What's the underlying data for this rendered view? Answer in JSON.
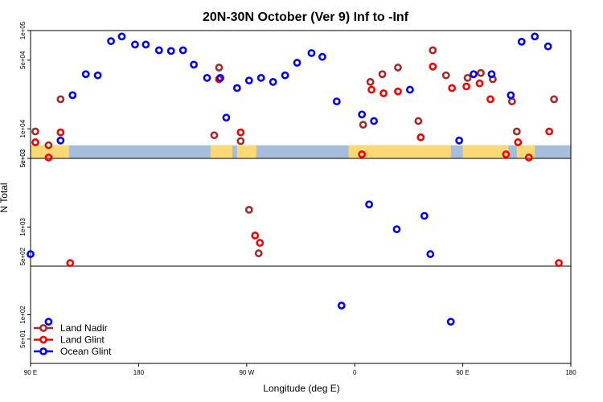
{
  "chart_data": {
    "type": "scatter",
    "title": "20N-30N October (Ver 9)   Inf to -Inf",
    "xlabel": "Longitude (deg E)",
    "ylabel": "N Total",
    "x_ticks": [
      {
        "value": 90,
        "label": "90 E"
      },
      {
        "value": 180,
        "label": "180"
      },
      {
        "value": 270,
        "label": "90 W"
      },
      {
        "value": 360,
        "label": "0"
      },
      {
        "value": 450,
        "label": "90 E"
      },
      {
        "value": 540,
        "label": "180"
      }
    ],
    "xlim": [
      90,
      540
    ],
    "panels": [
      {
        "ylim": [
          5000,
          100000
        ],
        "log": true,
        "ticks": [
          {
            "value": 5000,
            "label": "5e+03"
          },
          {
            "value": 10000,
            "label": "1e+04"
          },
          {
            "value": 50000,
            "label": "5e+04"
          },
          {
            "value": 100000,
            "label": "1e+05"
          }
        ]
      },
      {
        "ylim": [
          400,
          5000
        ],
        "log": true,
        "ticks": [
          {
            "value": 500,
            "label": "5e+02"
          },
          {
            "value": 1000,
            "label": "1e+03"
          },
          {
            "value": 5000,
            "label": "5e+03"
          }
        ]
      },
      {
        "ylim": [
          25,
          400
        ],
        "log": true,
        "ticks": [
          {
            "value": 50,
            "label": "5e+01"
          },
          {
            "value": 100,
            "label": "1e+02"
          }
        ]
      }
    ],
    "map_strip": {
      "y_bottom": 5000,
      "y_top": 6800,
      "ocean_color": "#a6bddb",
      "land_color": "#fdd976"
    },
    "legend": {
      "position": "bottom-left"
    },
    "series": [
      {
        "name": "Land Nadir",
        "color": "#a52a2a",
        "points": [
          [
            94,
            9400
          ],
          [
            105,
            6800
          ],
          [
            115,
            20000
          ],
          [
            243,
            8600
          ],
          [
            247,
            42000
          ],
          [
            265,
            7500
          ],
          [
            272,
            1500
          ],
          [
            280,
            540
          ],
          [
            367,
            11000
          ],
          [
            373,
            30000
          ],
          [
            383,
            36000
          ],
          [
            396,
            42000
          ],
          [
            413,
            12000
          ],
          [
            425,
            63000
          ],
          [
            436,
            35000
          ],
          [
            454,
            33000
          ],
          [
            465,
            37000
          ],
          [
            475,
            32000
          ],
          [
            491,
            19000
          ],
          [
            495,
            9400
          ],
          [
            526,
            20000
          ]
        ]
      },
      {
        "name": "Land Glint",
        "color": "#ff0000",
        "points": [
          [
            94,
            7300
          ],
          [
            105,
            5100
          ],
          [
            115,
            9200
          ],
          [
            123,
            430
          ],
          [
            247,
            32000
          ],
          [
            265,
            9200
          ],
          [
            277,
            820
          ],
          [
            281,
            690
          ],
          [
            366,
            5500
          ],
          [
            374,
            25000
          ],
          [
            384,
            23000
          ],
          [
            396,
            24000
          ],
          [
            415,
            8200
          ],
          [
            425,
            43000
          ],
          [
            441,
            26000
          ],
          [
            453,
            27000
          ],
          [
            464,
            29000
          ],
          [
            473,
            20000
          ],
          [
            486,
            5500
          ],
          [
            496,
            7300
          ],
          [
            505,
            5100
          ],
          [
            522,
            9400
          ],
          [
            530,
            430
          ]
        ]
      },
      {
        "name": "Ocean Glint",
        "color": "#0000ff",
        "points": [
          [
            90,
            530
          ],
          [
            105,
            82
          ],
          [
            115,
            7600
          ],
          [
            125,
            22000
          ],
          [
            136,
            36000
          ],
          [
            146,
            35000
          ],
          [
            157,
            78000
          ],
          [
            166,
            87000
          ],
          [
            177,
            72000
          ],
          [
            186,
            72000
          ],
          [
            197,
            63000
          ],
          [
            207,
            62000
          ],
          [
            217,
            63000
          ],
          [
            226,
            45000
          ],
          [
            237,
            33000
          ],
          [
            248,
            33000
          ],
          [
            253,
            13000
          ],
          [
            262,
            26000
          ],
          [
            272,
            31000
          ],
          [
            282,
            33000
          ],
          [
            292,
            30000
          ],
          [
            302,
            35000
          ],
          [
            312,
            47000
          ],
          [
            324,
            59000
          ],
          [
            333,
            54000
          ],
          [
            345,
            19000
          ],
          [
            349,
            130
          ],
          [
            366,
            14000
          ],
          [
            372,
            1700
          ],
          [
            376,
            12000
          ],
          [
            395,
            950
          ],
          [
            406,
            25000
          ],
          [
            418,
            1300
          ],
          [
            423,
            530
          ],
          [
            440,
            82
          ],
          [
            447,
            7600
          ],
          [
            459,
            36000
          ],
          [
            474,
            36000
          ],
          [
            490,
            22000
          ],
          [
            499,
            77000
          ],
          [
            510,
            87000
          ],
          [
            521,
            69000
          ]
        ]
      }
    ]
  }
}
